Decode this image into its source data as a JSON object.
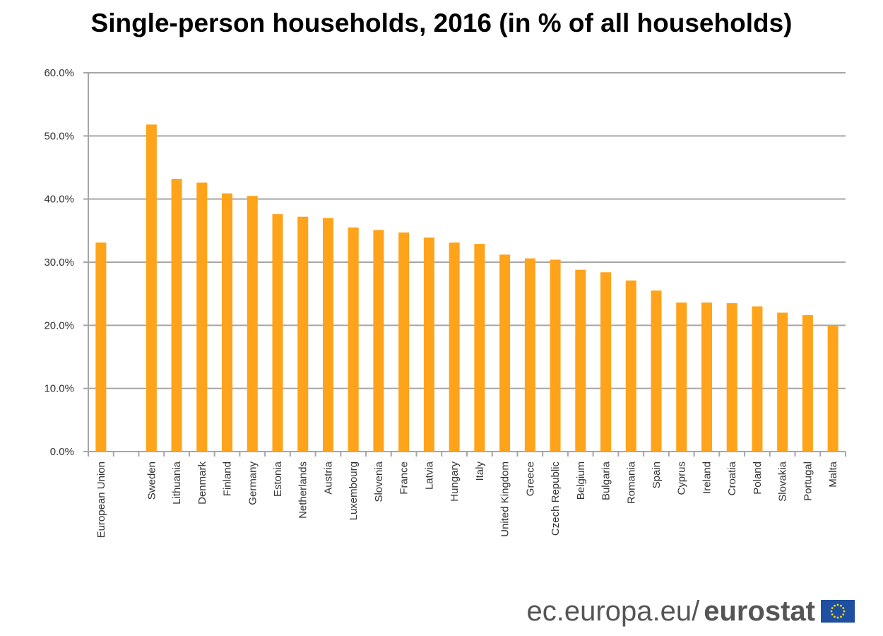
{
  "chart_data": {
    "type": "bar",
    "title": "Single-person households, 2016 (in %  of all households)",
    "xlabel": "",
    "ylabel": "",
    "ylim": [
      0,
      60
    ],
    "y_ticks": [
      "0.0%",
      "10.0%",
      "20.0%",
      "30.0%",
      "40.0%",
      "50.0%",
      "60.0%"
    ],
    "y_tick_values": [
      0,
      10,
      20,
      30,
      40,
      50,
      60
    ],
    "grid": true,
    "bar_color": "#FFA31A",
    "categories": [
      "European Union",
      "",
      "Sweden",
      "Lithuania",
      "Denmark",
      "Finland",
      "Germany",
      "Estonia",
      "Netherlands",
      "Austria",
      "Luxembourg",
      "Slovenia",
      "France",
      "Latvia",
      "Hungary",
      "Italy",
      "United Kingdom",
      "Greece",
      "Czech Republic",
      "Belgium",
      "Bulgaria",
      "Romania",
      "Spain",
      "Cyprus",
      "Ireland",
      "Croatia",
      "Poland",
      "Slovakia",
      "Portugal",
      "Malta"
    ],
    "values": [
      33.1,
      null,
      51.8,
      43.2,
      42.6,
      40.9,
      40.5,
      37.6,
      37.2,
      37.0,
      35.5,
      35.1,
      34.7,
      33.9,
      33.1,
      32.9,
      31.2,
      30.6,
      30.4,
      28.8,
      28.4,
      27.1,
      25.5,
      23.6,
      23.6,
      23.5,
      23.0,
      22.0,
      21.6,
      20.0
    ]
  },
  "footer": {
    "source_domain": "ec.europa.eu/",
    "source_brand": "eurostat",
    "logo_color": "#1E4FA0",
    "star_color": "#FFDD00"
  }
}
